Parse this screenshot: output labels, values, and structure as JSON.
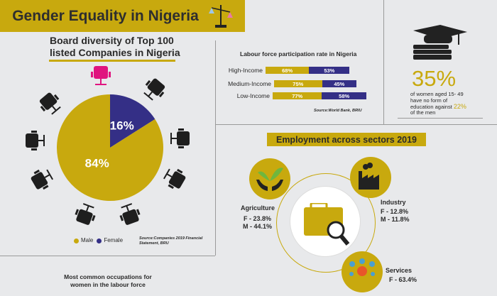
{
  "header": {
    "title": "Gender Equality in Nigeria",
    "icon": "scales-icon"
  },
  "board": {
    "title_line1": "Board diversity of Top 100",
    "title_line2": "listed Companies in Nigeria",
    "chart_data": {
      "type": "pie",
      "slices": [
        {
          "label": "Female",
          "value": 16,
          "text": "16%",
          "color": "#342f86"
        },
        {
          "label": "Male",
          "value": 84,
          "text": "84%",
          "color": "#c8a90e"
        }
      ]
    },
    "legend": {
      "male": "Male",
      "female": "Female"
    },
    "source": "Source:Companies 2019 Financial Statement, BRU"
  },
  "labour": {
    "title": "Labour force participation rate in Nigeria",
    "chart_data": {
      "type": "bar",
      "stacked": true,
      "categories": [
        "High-Income",
        "Medium-Income",
        "Low-Income"
      ],
      "series": [
        {
          "color": "#c8a90e",
          "values": [
            68,
            75,
            77
          ],
          "labels": [
            "68%",
            "75%",
            "77%"
          ]
        },
        {
          "color": "#342f86",
          "values": [
            53,
            45,
            58
          ],
          "labels": [
            "53%",
            "45%",
            "58%"
          ]
        }
      ]
    },
    "source": "Source:World Bank, BRIU"
  },
  "education": {
    "percent": "35%",
    "line1": "of women aged 15- 49",
    "line2": "have no form of",
    "line3": "education against",
    "men_percent": "22%",
    "line4": "of the men"
  },
  "employment": {
    "title": "Employment across sectors 2019",
    "agriculture": {
      "name": "Agriculture",
      "female": "F - 23.8%",
      "male": "M - 44.1%"
    },
    "industry": {
      "name": "Industry",
      "female": "F - 12.8%",
      "male": "M - 11.8%"
    },
    "services": {
      "name": "Services",
      "female": "F - 63.4%"
    }
  },
  "occupations": {
    "title_line1": "Most common occupations for",
    "title_line2": "women in the labour force"
  },
  "colors": {
    "gold": "#c8a90e",
    "navy": "#342f86",
    "pink": "#e0147f",
    "background": "#e8e9eb"
  }
}
